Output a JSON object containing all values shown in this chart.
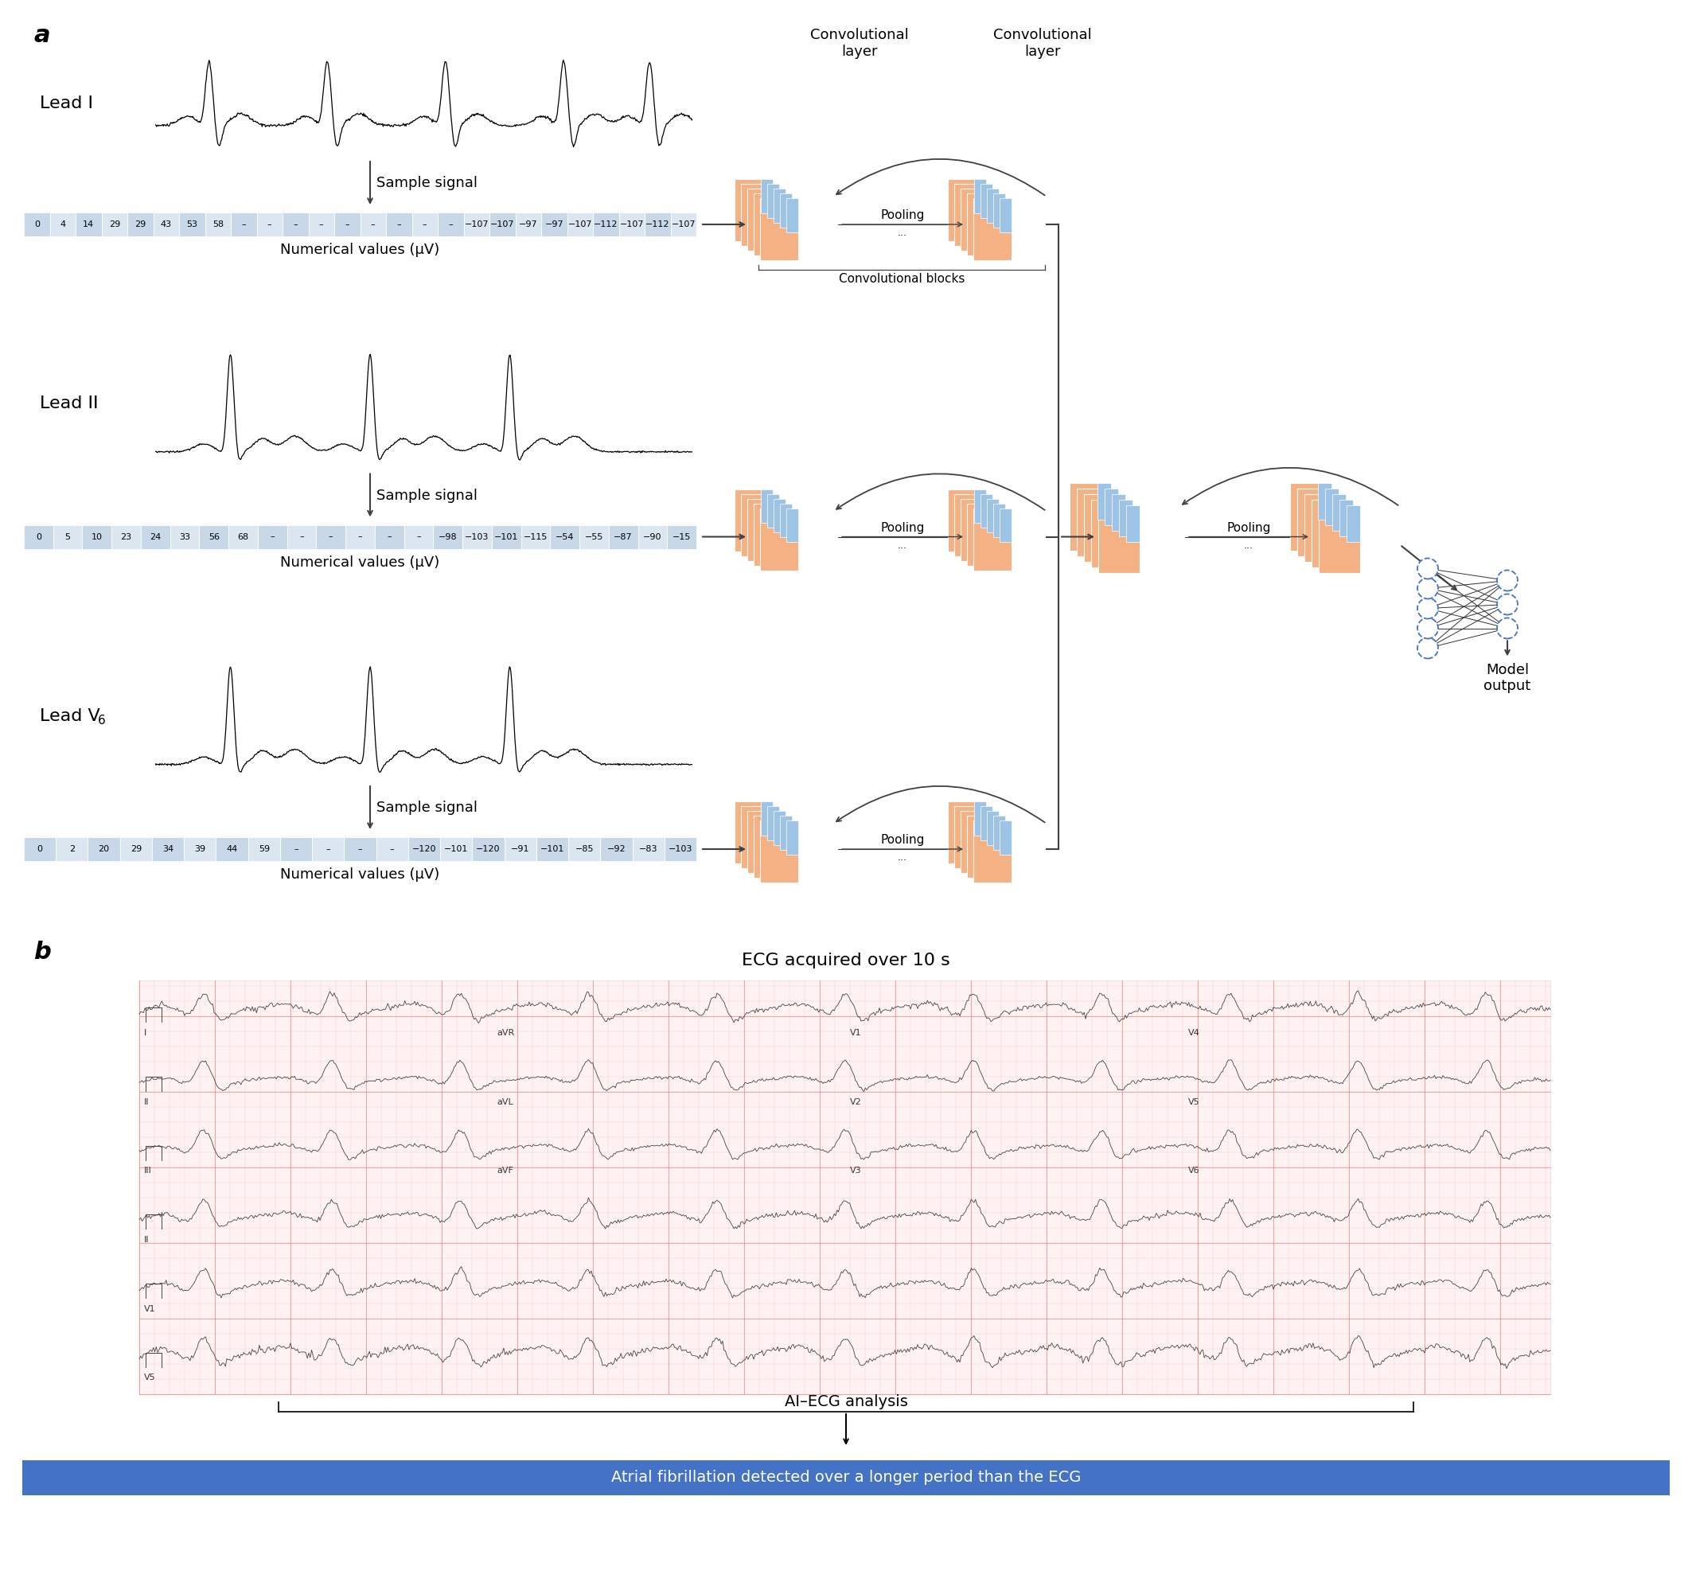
{
  "panel_a_label": "a",
  "panel_b_label": "b",
  "lead1_label": "Lead I",
  "lead2_label": "Lead II",
  "lead3_label": "Lead V",
  "lead3_sub": "6",
  "sample_signal_label": "Sample signal",
  "numerical_values_label": "Numerical values (µV)",
  "conv_layer_label": "Convolutional\nlayer",
  "conv_blocks_label": "Convolutional blocks",
  "pooling_label": "Pooling",
  "model_output_label": "Model\noutput",
  "lead1_values": [
    "0",
    "4",
    "14",
    "29",
    "29",
    "43",
    "53",
    "58",
    "–",
    "–",
    "–",
    "–",
    "–",
    "–",
    "–",
    "–",
    "–",
    "−107",
    "−107",
    "−97",
    "−97",
    "−107",
    "−112",
    "−107",
    "−112",
    "−107"
  ],
  "lead2_values": [
    "0",
    "5",
    "10",
    "23",
    "24",
    "33",
    "56",
    "68",
    "–",
    "–",
    "–",
    "–",
    "–",
    "–",
    "−98",
    "−103",
    "−101",
    "−115",
    "−54",
    "−55",
    "−87",
    "−90",
    "−15"
  ],
  "lead3_values": [
    "0",
    "2",
    "20",
    "29",
    "34",
    "39",
    "44",
    "59",
    "–",
    "–",
    "–",
    "–",
    "−120",
    "−101",
    "−120",
    "−91",
    "−101",
    "−85",
    "−92",
    "−83",
    "−103"
  ],
  "ecg_title": "ECG acquired over 10 s",
  "ai_ecg_label": "AI–ECG analysis",
  "arrow_label": "Atrial fibrillation detected over a longer period than the ECG",
  "bg_color": "#ffffff",
  "grid_color_light": "#f5c0c0",
  "grid_color_dark": "#e88888",
  "ecg_bg": "#fff2f2",
  "table_bg_odd": "#c8d8e8",
  "table_bg_even": "#dce6f0",
  "conv_color_orange": "#f4b183",
  "conv_color_blue": "#9dc3e6",
  "arrow_blue": "#4472c4",
  "nn_blue": "#4472c4",
  "line_color": "#404040"
}
